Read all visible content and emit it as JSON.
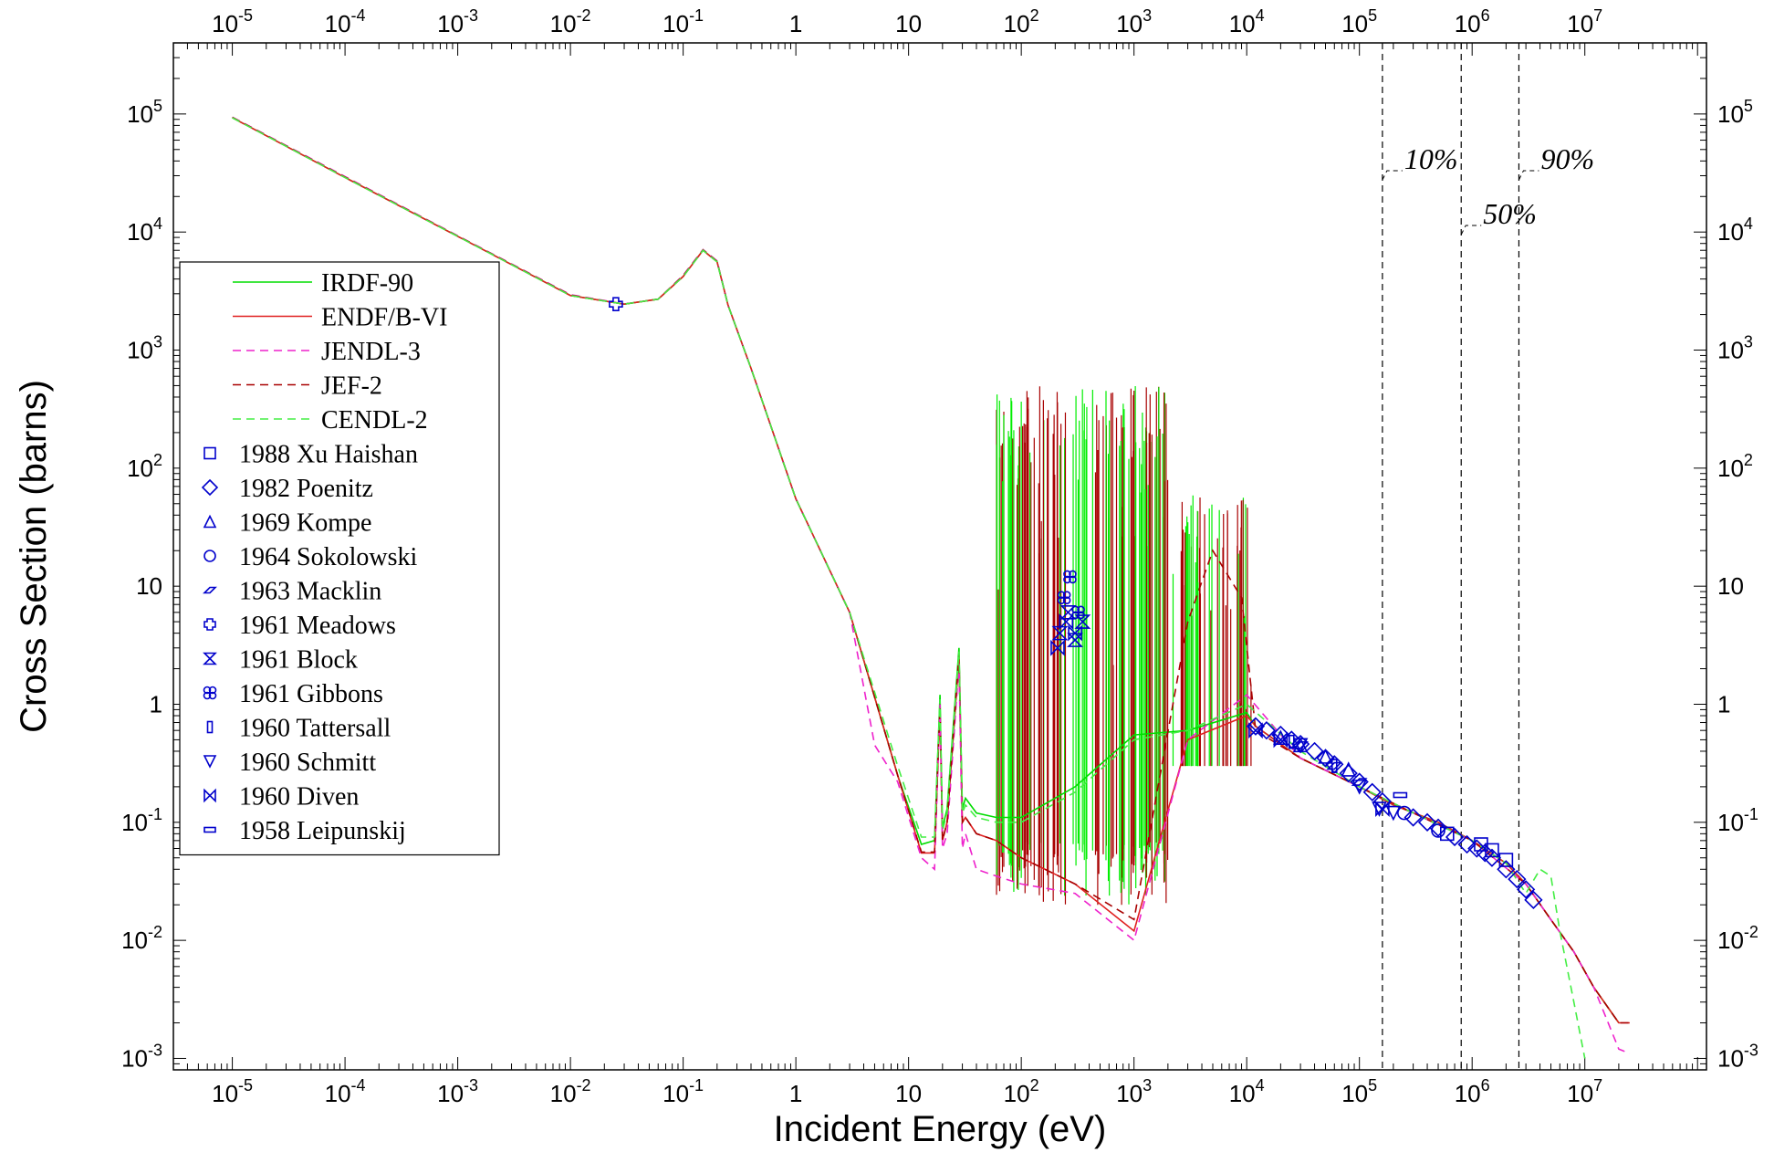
{
  "chart_data": {
    "type": "line",
    "title": "",
    "xlabel": "Incident Energy  (eV)",
    "ylabel": "Cross Section  (barns)",
    "x_scale": "log",
    "y_scale": "log",
    "xlim": [
      3e-06,
      120000000.0
    ],
    "ylim": [
      0.0008,
      400000
    ],
    "x_ticks": [
      {
        "value": 1e-05,
        "base": "10",
        "exp": "-5"
      },
      {
        "value": 0.0001,
        "base": "10",
        "exp": "-4"
      },
      {
        "value": 0.001,
        "base": "10",
        "exp": "-3"
      },
      {
        "value": 0.01,
        "base": "10",
        "exp": "-2"
      },
      {
        "value": 0.1,
        "base": "10",
        "exp": "-1"
      },
      {
        "value": 1,
        "base": "1",
        "exp": ""
      },
      {
        "value": 10,
        "base": "10",
        "exp": ""
      },
      {
        "value": 100,
        "base": "10",
        "exp": "2"
      },
      {
        "value": 1000,
        "base": "10",
        "exp": "3"
      },
      {
        "value": 10000,
        "base": "10",
        "exp": "4"
      },
      {
        "value": 100000,
        "base": "10",
        "exp": "5"
      },
      {
        "value": 1000000,
        "base": "10",
        "exp": "6"
      },
      {
        "value": 10000000,
        "base": "10",
        "exp": "7"
      }
    ],
    "y_ticks": [
      {
        "value": 0.001,
        "base": "10",
        "exp": "-3"
      },
      {
        "value": 0.01,
        "base": "10",
        "exp": "-2"
      },
      {
        "value": 0.1,
        "base": "10",
        "exp": "-1"
      },
      {
        "value": 1,
        "base": "1",
        "exp": ""
      },
      {
        "value": 10,
        "base": "10",
        "exp": ""
      },
      {
        "value": 100,
        "base": "10",
        "exp": "2"
      },
      {
        "value": 1000,
        "base": "10",
        "exp": "3"
      },
      {
        "value": 10000,
        "base": "10",
        "exp": "4"
      },
      {
        "value": 100000,
        "base": "10",
        "exp": "5"
      }
    ],
    "grid": false,
    "legend_position": "left",
    "series": [
      {
        "name": "IRDF-90",
        "color": "#00dd00",
        "dash": "solid",
        "x": [
          1e-05,
          0.0001,
          0.001,
          0.01,
          0.03,
          0.06,
          0.1,
          0.15,
          0.2,
          0.25,
          0.4,
          1,
          3,
          8,
          13,
          17,
          19,
          20,
          22,
          28,
          30,
          32,
          40,
          60,
          100,
          300,
          1000,
          3000,
          10000,
          12000,
          30000,
          100000,
          200000,
          500000,
          1000000,
          2000000,
          3000000,
          5000000,
          8000000,
          12000000,
          20000000
        ],
        "y": [
          93000,
          29000,
          9200,
          2900,
          2450,
          2700,
          4200,
          7000,
          5600,
          2400,
          700,
          55,
          6,
          0.25,
          0.065,
          0.07,
          1.2,
          0.09,
          0.13,
          3,
          0.13,
          0.16,
          0.12,
          0.11,
          0.11,
          0.2,
          0.55,
          0.6,
          0.85,
          0.65,
          0.35,
          0.2,
          0.14,
          0.1,
          0.07,
          0.045,
          0.03,
          0.015,
          0.008,
          0.004,
          0.002
        ]
      },
      {
        "name": "ENDF/B-VI",
        "color": "#e02020",
        "dash": "solid",
        "x": [
          1e-05,
          0.0001,
          0.001,
          0.01,
          0.03,
          0.06,
          0.1,
          0.15,
          0.2,
          0.25,
          0.4,
          1,
          3,
          8,
          13,
          17,
          19,
          20,
          22,
          28,
          30,
          32,
          40,
          60,
          100,
          300,
          1000,
          3000,
          10000,
          12000,
          30000,
          100000,
          200000,
          500000,
          1000000,
          2000000,
          3000000,
          5000000,
          8000000,
          12000000,
          20000000,
          25000000
        ],
        "y": [
          93000,
          29000,
          9200,
          2900,
          2450,
          2700,
          4200,
          7000,
          5600,
          2400,
          700,
          55,
          6,
          0.25,
          0.055,
          0.055,
          0.9,
          0.07,
          0.1,
          2.5,
          0.1,
          0.11,
          0.08,
          0.07,
          0.05,
          0.03,
          0.012,
          0.5,
          0.8,
          0.65,
          0.35,
          0.2,
          0.14,
          0.1,
          0.07,
          0.045,
          0.03,
          0.015,
          0.008,
          0.004,
          0.002,
          0.002
        ]
      },
      {
        "name": "JENDL-3",
        "color": "#ee22cc",
        "dash": "dashed",
        "x": [
          1e-05,
          0.0001,
          0.001,
          0.01,
          0.03,
          0.06,
          0.1,
          0.15,
          0.2,
          0.25,
          0.4,
          1,
          3,
          5,
          8,
          13,
          17,
          19,
          20,
          22,
          28,
          30,
          32,
          40,
          60,
          100,
          300,
          1000,
          3000,
          10000,
          30000,
          100000,
          300000,
          1000000,
          3000000,
          5000000,
          8000000,
          12000000,
          20000000,
          25000000
        ],
        "y": [
          94000,
          29500,
          9300,
          2950,
          2460,
          2700,
          4300,
          7100,
          5700,
          2400,
          700,
          55,
          6,
          0.45,
          0.22,
          0.05,
          0.04,
          1,
          0.06,
          0.08,
          2.2,
          0.06,
          0.08,
          0.04,
          0.035,
          0.03,
          0.025,
          0.01,
          0.5,
          1.2,
          0.35,
          0.2,
          0.12,
          0.07,
          0.03,
          0.015,
          0.008,
          0.004,
          0.0012,
          0.0011
        ]
      },
      {
        "name": "JEF-2",
        "color": "#a80000",
        "dash": "dashed",
        "x": [
          1e-05,
          0.0001,
          0.001,
          0.01,
          0.03,
          0.06,
          0.1,
          0.15,
          0.2,
          0.25,
          0.4,
          1,
          3,
          8,
          13,
          17,
          19,
          20,
          22,
          28,
          30,
          32,
          40,
          60,
          100,
          300,
          1000,
          3000,
          5000,
          9000,
          12000,
          30000,
          100000,
          300000,
          1000000,
          3000000,
          5000000,
          8000000,
          12000000,
          20000000,
          25000000
        ],
        "y": [
          93500,
          29200,
          9250,
          2920,
          2450,
          2700,
          4250,
          7050,
          5650,
          2400,
          700,
          55,
          6,
          0.25,
          0.056,
          0.056,
          0.95,
          0.07,
          0.1,
          2.6,
          0.1,
          0.11,
          0.08,
          0.07,
          0.05,
          0.03,
          0.015,
          5,
          20,
          8,
          0.6,
          0.35,
          0.2,
          0.12,
          0.07,
          0.03,
          0.015,
          0.008,
          0.004,
          0.002,
          0.002
        ]
      },
      {
        "name": "CENDL-2",
        "color": "#44ee44",
        "dash": "dashed",
        "x": [
          1e-05,
          0.0001,
          0.001,
          0.01,
          0.03,
          0.06,
          0.1,
          0.15,
          0.2,
          0.25,
          0.4,
          1,
          3,
          8,
          13,
          17,
          19,
          20,
          22,
          28,
          30,
          32,
          40,
          60,
          100,
          300,
          1000,
          3000,
          10000,
          30000,
          100000,
          300000,
          1000000,
          2000000,
          3000000,
          4000000,
          5000000,
          6000000,
          8000000,
          10000000
        ],
        "y": [
          93000,
          29000,
          9200,
          2900,
          2450,
          2700,
          4200,
          7000,
          5600,
          2400,
          700,
          55,
          6,
          0.3,
          0.075,
          0.075,
          1.1,
          0.085,
          0.12,
          2.8,
          0.12,
          0.14,
          0.11,
          0.1,
          0.1,
          0.18,
          0.5,
          0.6,
          1,
          0.4,
          0.2,
          0.12,
          0.07,
          0.045,
          0.025,
          0.04,
          0.035,
          0.012,
          0.003,
          0.001
        ]
      }
    ],
    "experimental": [
      {
        "name": "1988 Xu Haishan",
        "marker": "square",
        "x": [
          600000,
          1200000,
          1500000,
          2000000
        ],
        "y": [
          0.08,
          0.065,
          0.058,
          0.048
        ]
      },
      {
        "name": "1982 Poenitz",
        "marker": "diamond",
        "x": [
          12000,
          15000,
          20000,
          25000,
          30000,
          40000,
          50000,
          60000,
          80000,
          100000,
          130000,
          160000,
          300000,
          400000,
          500000,
          700000,
          900000,
          1100000,
          1300000,
          1500000,
          2000000,
          2500000,
          3000000,
          3500000
        ],
        "y": [
          0.65,
          0.6,
          0.55,
          0.5,
          0.46,
          0.4,
          0.35,
          0.31,
          0.26,
          0.22,
          0.18,
          0.15,
          0.11,
          0.1,
          0.09,
          0.075,
          0.065,
          0.06,
          0.055,
          0.05,
          0.04,
          0.033,
          0.027,
          0.022
        ]
      },
      {
        "name": "1969 Kompe",
        "marker": "triangle-up",
        "x": [
          20000,
          30000,
          50000,
          80000
        ],
        "y": [
          0.52,
          0.45,
          0.36,
          0.28
        ]
      },
      {
        "name": "1964 Sokolowski",
        "marker": "circle",
        "x": [
          250000,
          500000
        ],
        "y": [
          0.12,
          0.085
        ]
      },
      {
        "name": "1963 Macklin",
        "marker": "parallelogram",
        "x": [
          30000,
          60000,
          100000
        ],
        "y": [
          0.45,
          0.3,
          0.22
        ]
      },
      {
        "name": "1961 Meadows",
        "marker": "cross",
        "x": [
          0.0253
        ],
        "y": [
          2450
        ]
      },
      {
        "name": "1961 Block",
        "marker": "hourglass",
        "x": [
          220,
          260,
          300,
          350
        ],
        "y": [
          4,
          6,
          3.5,
          5
        ]
      },
      {
        "name": "1961 Gibbons",
        "marker": "quad-circle",
        "x": [
          240,
          270,
          320
        ],
        "y": [
          8,
          12,
          6
        ]
      },
      {
        "name": "1960 Tattersall",
        "marker": "rectangle",
        "x": [
          25000,
          60000
        ],
        "y": [
          0.48,
          0.3
        ]
      },
      {
        "name": "1960 Schmitt",
        "marker": "triangle-down",
        "x": [
          30000,
          100000,
          150000,
          200000
        ],
        "y": [
          0.45,
          0.2,
          0.13,
          0.12
        ]
      },
      {
        "name": "1960 Diven",
        "marker": "bowtie",
        "x": [
          210,
          250,
          300,
          12000,
          20000,
          160000
        ],
        "y": [
          3,
          5,
          4,
          0.6,
          0.5,
          0.13
        ]
      },
      {
        "name": "1958 Leipunskij",
        "marker": "bar",
        "x": [
          230000
        ],
        "y": [
          0.17
        ]
      }
    ],
    "vertical_lines": [
      {
        "x": 160000,
        "label": "10%"
      },
      {
        "x": 800000,
        "label": "50%"
      },
      {
        "x": 2600000,
        "label": "90%"
      }
    ],
    "styling": {
      "axis_color": "#000000",
      "marker_color": "#0000cc",
      "background": "#ffffff"
    }
  }
}
